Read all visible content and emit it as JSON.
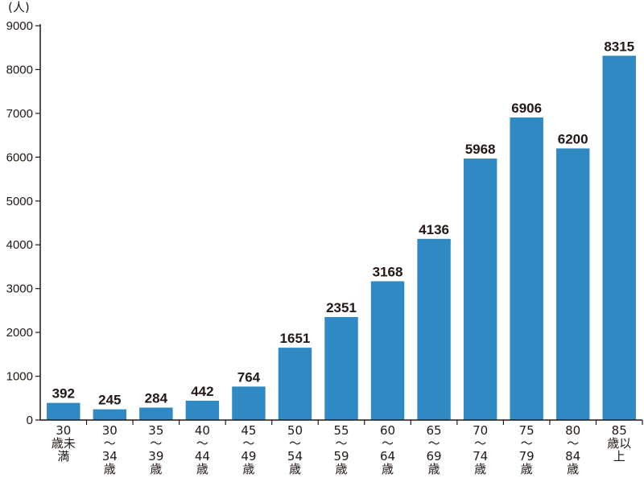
{
  "chart_data": {
    "type": "bar",
    "unit_label": "(人)",
    "categories": [
      [
        "30",
        "歳未",
        "満"
      ],
      [
        "30",
        "～",
        "34",
        "歳"
      ],
      [
        "35",
        "～",
        "39",
        "歳"
      ],
      [
        "40",
        "～",
        "44",
        "歳"
      ],
      [
        "45",
        "～",
        "49",
        "歳"
      ],
      [
        "50",
        "～",
        "54",
        "歳"
      ],
      [
        "55",
        "～",
        "59",
        "歳"
      ],
      [
        "60",
        "～",
        "64",
        "歳"
      ],
      [
        "65",
        "～",
        "69",
        "歳"
      ],
      [
        "70",
        "～",
        "74",
        "歳"
      ],
      [
        "75",
        "～",
        "79",
        "歳"
      ],
      [
        "80",
        "～",
        "84",
        "歳"
      ],
      [
        "85",
        "歳以",
        "上"
      ]
    ],
    "values": [
      392,
      245,
      284,
      442,
      764,
      1651,
      2351,
      3168,
      4136,
      5968,
      6906,
      6200,
      8315
    ],
    "data_labels": [
      "392",
      "245",
      "284",
      "442",
      "764",
      "1651",
      "2351",
      "3168",
      "4136",
      "5968",
      "6906",
      "6200",
      "8315"
    ],
    "ylim": [
      0,
      9000
    ],
    "yticks": [
      "0",
      "1000",
      "2000",
      "3000",
      "4000",
      "5000",
      "6000",
      "7000",
      "8000",
      "9000"
    ],
    "bar_color": "#2f8ac4",
    "axis_color": "#231815",
    "grid": false,
    "legend": "none"
  }
}
